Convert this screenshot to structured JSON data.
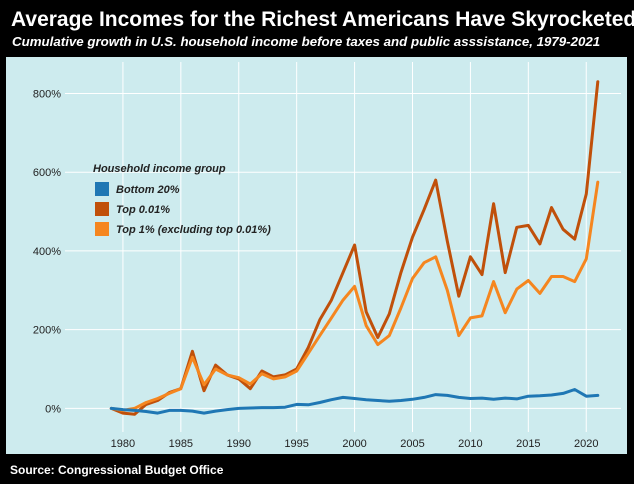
{
  "header": {
    "title": "Average Incomes for the Richest Americans Have Skyrocketed",
    "subtitle": "Cumulative growth in U.S. household income before taxes and public asssistance, 1979-2021"
  },
  "footer": {
    "source": "Source: Congressional Budget Office"
  },
  "chart_data": {
    "type": "line",
    "title": "Average Incomes for the Richest Americans Have Skyrocketed",
    "subtitle": "Cumulative growth in U.S. household income before taxes and public asssistance, 1979-2021",
    "xlabel": "",
    "ylabel": "",
    "xlim": [
      1975,
      2023
    ],
    "ylim": [
      -60,
      880
    ],
    "x_ticks": [
      1980,
      1985,
      1990,
      1995,
      2000,
      2005,
      2010,
      2015,
      2020
    ],
    "y_ticks": [
      0,
      200,
      400,
      600,
      800
    ],
    "y_tick_labels": [
      "0%",
      "200%",
      "400%",
      "600%",
      "800%"
    ],
    "grid": true,
    "legend_title": "Household income group",
    "legend_position": "upper-left",
    "x": [
      1979,
      1980,
      1981,
      1982,
      1983,
      1984,
      1985,
      1986,
      1987,
      1988,
      1989,
      1990,
      1991,
      1992,
      1993,
      1994,
      1995,
      1996,
      1997,
      1998,
      1999,
      2000,
      2001,
      2002,
      2003,
      2004,
      2005,
      2006,
      2007,
      2008,
      2009,
      2010,
      2011,
      2012,
      2013,
      2014,
      2015,
      2016,
      2017,
      2018,
      2019,
      2020,
      2021
    ],
    "series": [
      {
        "name": "Bottom 20%",
        "color": "#1f77b4",
        "values": [
          0,
          -3,
          -5,
          -8,
          -12,
          -5,
          -5,
          -7,
          -12,
          -7,
          -3,
          0,
          1,
          2,
          2,
          3,
          10,
          9,
          15,
          22,
          28,
          25,
          22,
          20,
          18,
          20,
          23,
          28,
          35,
          33,
          28,
          25,
          26,
          23,
          26,
          24,
          31,
          32,
          34,
          38,
          48,
          31,
          33
        ]
      },
      {
        "name": "Top 0.01%",
        "color": "#c0500a",
        "values": [
          0,
          -12,
          -15,
          10,
          20,
          40,
          50,
          145,
          45,
          110,
          85,
          75,
          50,
          95,
          80,
          85,
          100,
          155,
          225,
          275,
          345,
          415,
          245,
          180,
          240,
          345,
          435,
          505,
          580,
          425,
          285,
          385,
          340,
          520,
          345,
          460,
          465,
          418,
          510,
          455,
          430,
          545,
          830
        ]
      },
      {
        "name": "Top 1% (excluding top 0.01%)",
        "color": "#f5861f",
        "values": [
          0,
          -5,
          0,
          15,
          25,
          38,
          50,
          130,
          60,
          100,
          85,
          78,
          62,
          88,
          75,
          80,
          95,
          140,
          185,
          230,
          275,
          310,
          210,
          162,
          185,
          255,
          330,
          370,
          385,
          300,
          185,
          230,
          235,
          322,
          243,
          303,
          325,
          292,
          335,
          335,
          322,
          380,
          575
        ]
      }
    ]
  }
}
